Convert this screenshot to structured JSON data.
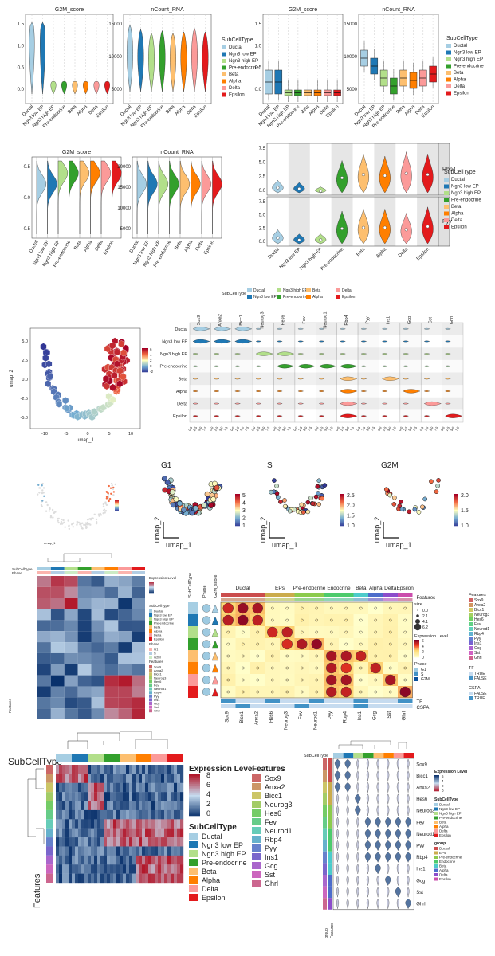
{
  "cell_types": [
    "Ductal",
    "Ngn3 low EP",
    "Ngn3 high EP",
    "Pre-endocrine",
    "Beta",
    "Alpha",
    "Delta",
    "Epsilon"
  ],
  "colors": {
    "Ductal": "#a6cee3",
    "Ngn3 low EP": "#1f78b4",
    "Ngn3 high EP": "#b2df8a",
    "Pre-endocrine": "#33a02c",
    "Beta": "#fdbf6f",
    "Alpha": "#ff7f00",
    "Delta": "#fb9a99",
    "Epsilon": "#e31a1c"
  },
  "features": [
    "Sox9",
    "Anxa2",
    "Bicc1",
    "Neurog3",
    "Hes6",
    "Fev",
    "Neurod1",
    "Rbp4",
    "Pyy",
    "Ins1",
    "Gcg",
    "Sst",
    "Ghrl"
  ],
  "features_hm": [
    "Sox9",
    "Anxa2",
    "Bicc1",
    "Neurog3",
    "Hes6",
    "Fev",
    "Neurod1",
    "Rbp4",
    "Pyy",
    "Ins1",
    "Gcg",
    "Sst",
    "Ghrl"
  ],
  "features_dot": [
    "Sox9",
    "Bicc1",
    "Anxa2",
    "Hes6",
    "Neurog3",
    "Fev",
    "Neurod1",
    "Pyy",
    "Rbp4",
    "Ins1",
    "Gcg",
    "Sst",
    "Ghrl"
  ],
  "features_grouped": [
    "Sox9",
    "Bicc1",
    "Anxa2",
    "Hes6",
    "Neurog3",
    "Fev",
    "Neurod1",
    "Pyy",
    "Rbp4",
    "Ins1",
    "Gcg",
    "Sst",
    "Ghrl"
  ],
  "text": {
    "g2m": "G2M_score",
    "ncount": "nCount_RNA",
    "subcelltype": "SubCellType",
    "rbp4": "Rbp4",
    "pyy": "Pyy",
    "umap1": "umap_1",
    "umap2": "umap_2",
    "g1": "G1",
    "s": "S",
    "g2m_title": "G2M",
    "expr_level": "Expression Level",
    "phase": "Phase",
    "features": "Features",
    "tf": "TF",
    "cspa": "CSPA",
    "size": "size",
    "group": "group",
    "subcelltype_row": "SubCellType",
    "phase_row": "Phase",
    "g2m_score_row": "G2M_score",
    "true": "TRUE",
    "false": "FALSE"
  },
  "phase_levels": [
    "G1",
    "S",
    "G2M"
  ],
  "dot_groups": [
    "Ductal",
    "EPs",
    "Pre-endocrine",
    "Endocrine",
    "Beta",
    "Alpha",
    "Delta",
    "Epsilon"
  ],
  "group_levels": [
    "Ductal",
    "EPs",
    "Pre-endocrine",
    "Endocrine",
    "Beta",
    "Alpha",
    "Delta",
    "Epsilon"
  ],
  "panel1": {
    "g2m_ticks": [
      "1.5",
      "1.0",
      "0.5",
      "0.0"
    ],
    "ncount_ticks": [
      "15000",
      "10000",
      "5000"
    ]
  },
  "panel4_ticks": {
    "g2m": [
      "0.5",
      "0.0",
      "-0.5"
    ],
    "ncount": [
      "20000",
      "15000",
      "10000",
      "5000"
    ]
  },
  "panel5_ticks": {
    "rbp4": [
      "7.5",
      "5.0",
      "2.5",
      "0.0"
    ],
    "pyy": [
      "7.5",
      "5.0",
      "2.5",
      "0.0"
    ]
  },
  "umap_ticks": {
    "y": [
      "5.0",
      "2.5",
      "0.0",
      "-2.5",
      "-5.0"
    ],
    "x": [
      "-10",
      "-5",
      "0",
      "5",
      "10"
    ]
  },
  "legend_small": [
    "6",
    "4",
    "2",
    "0",
    "-2"
  ],
  "g1_ticks": [
    "5",
    "4",
    "3",
    "2",
    "1"
  ],
  "s_ticks": [
    "2.5",
    "2.0",
    "1.5",
    "1.0"
  ],
  "g2m_ticks": [
    "2.0",
    "1.5",
    "1.0"
  ],
  "size_levels": [
    "0.0",
    "2.1",
    "4.1",
    "6.2"
  ],
  "expr_ticks_dot": [
    "6",
    "4",
    "2",
    "0"
  ],
  "hm_ticks": [
    "8",
    "6",
    "4",
    "2",
    "0"
  ],
  "grouped_ticks": [
    "6",
    "4",
    "2",
    "0"
  ],
  "violin_grid_ticks": [
    "0.0",
    "2.5",
    "5.0",
    "7.5"
  ]
}
